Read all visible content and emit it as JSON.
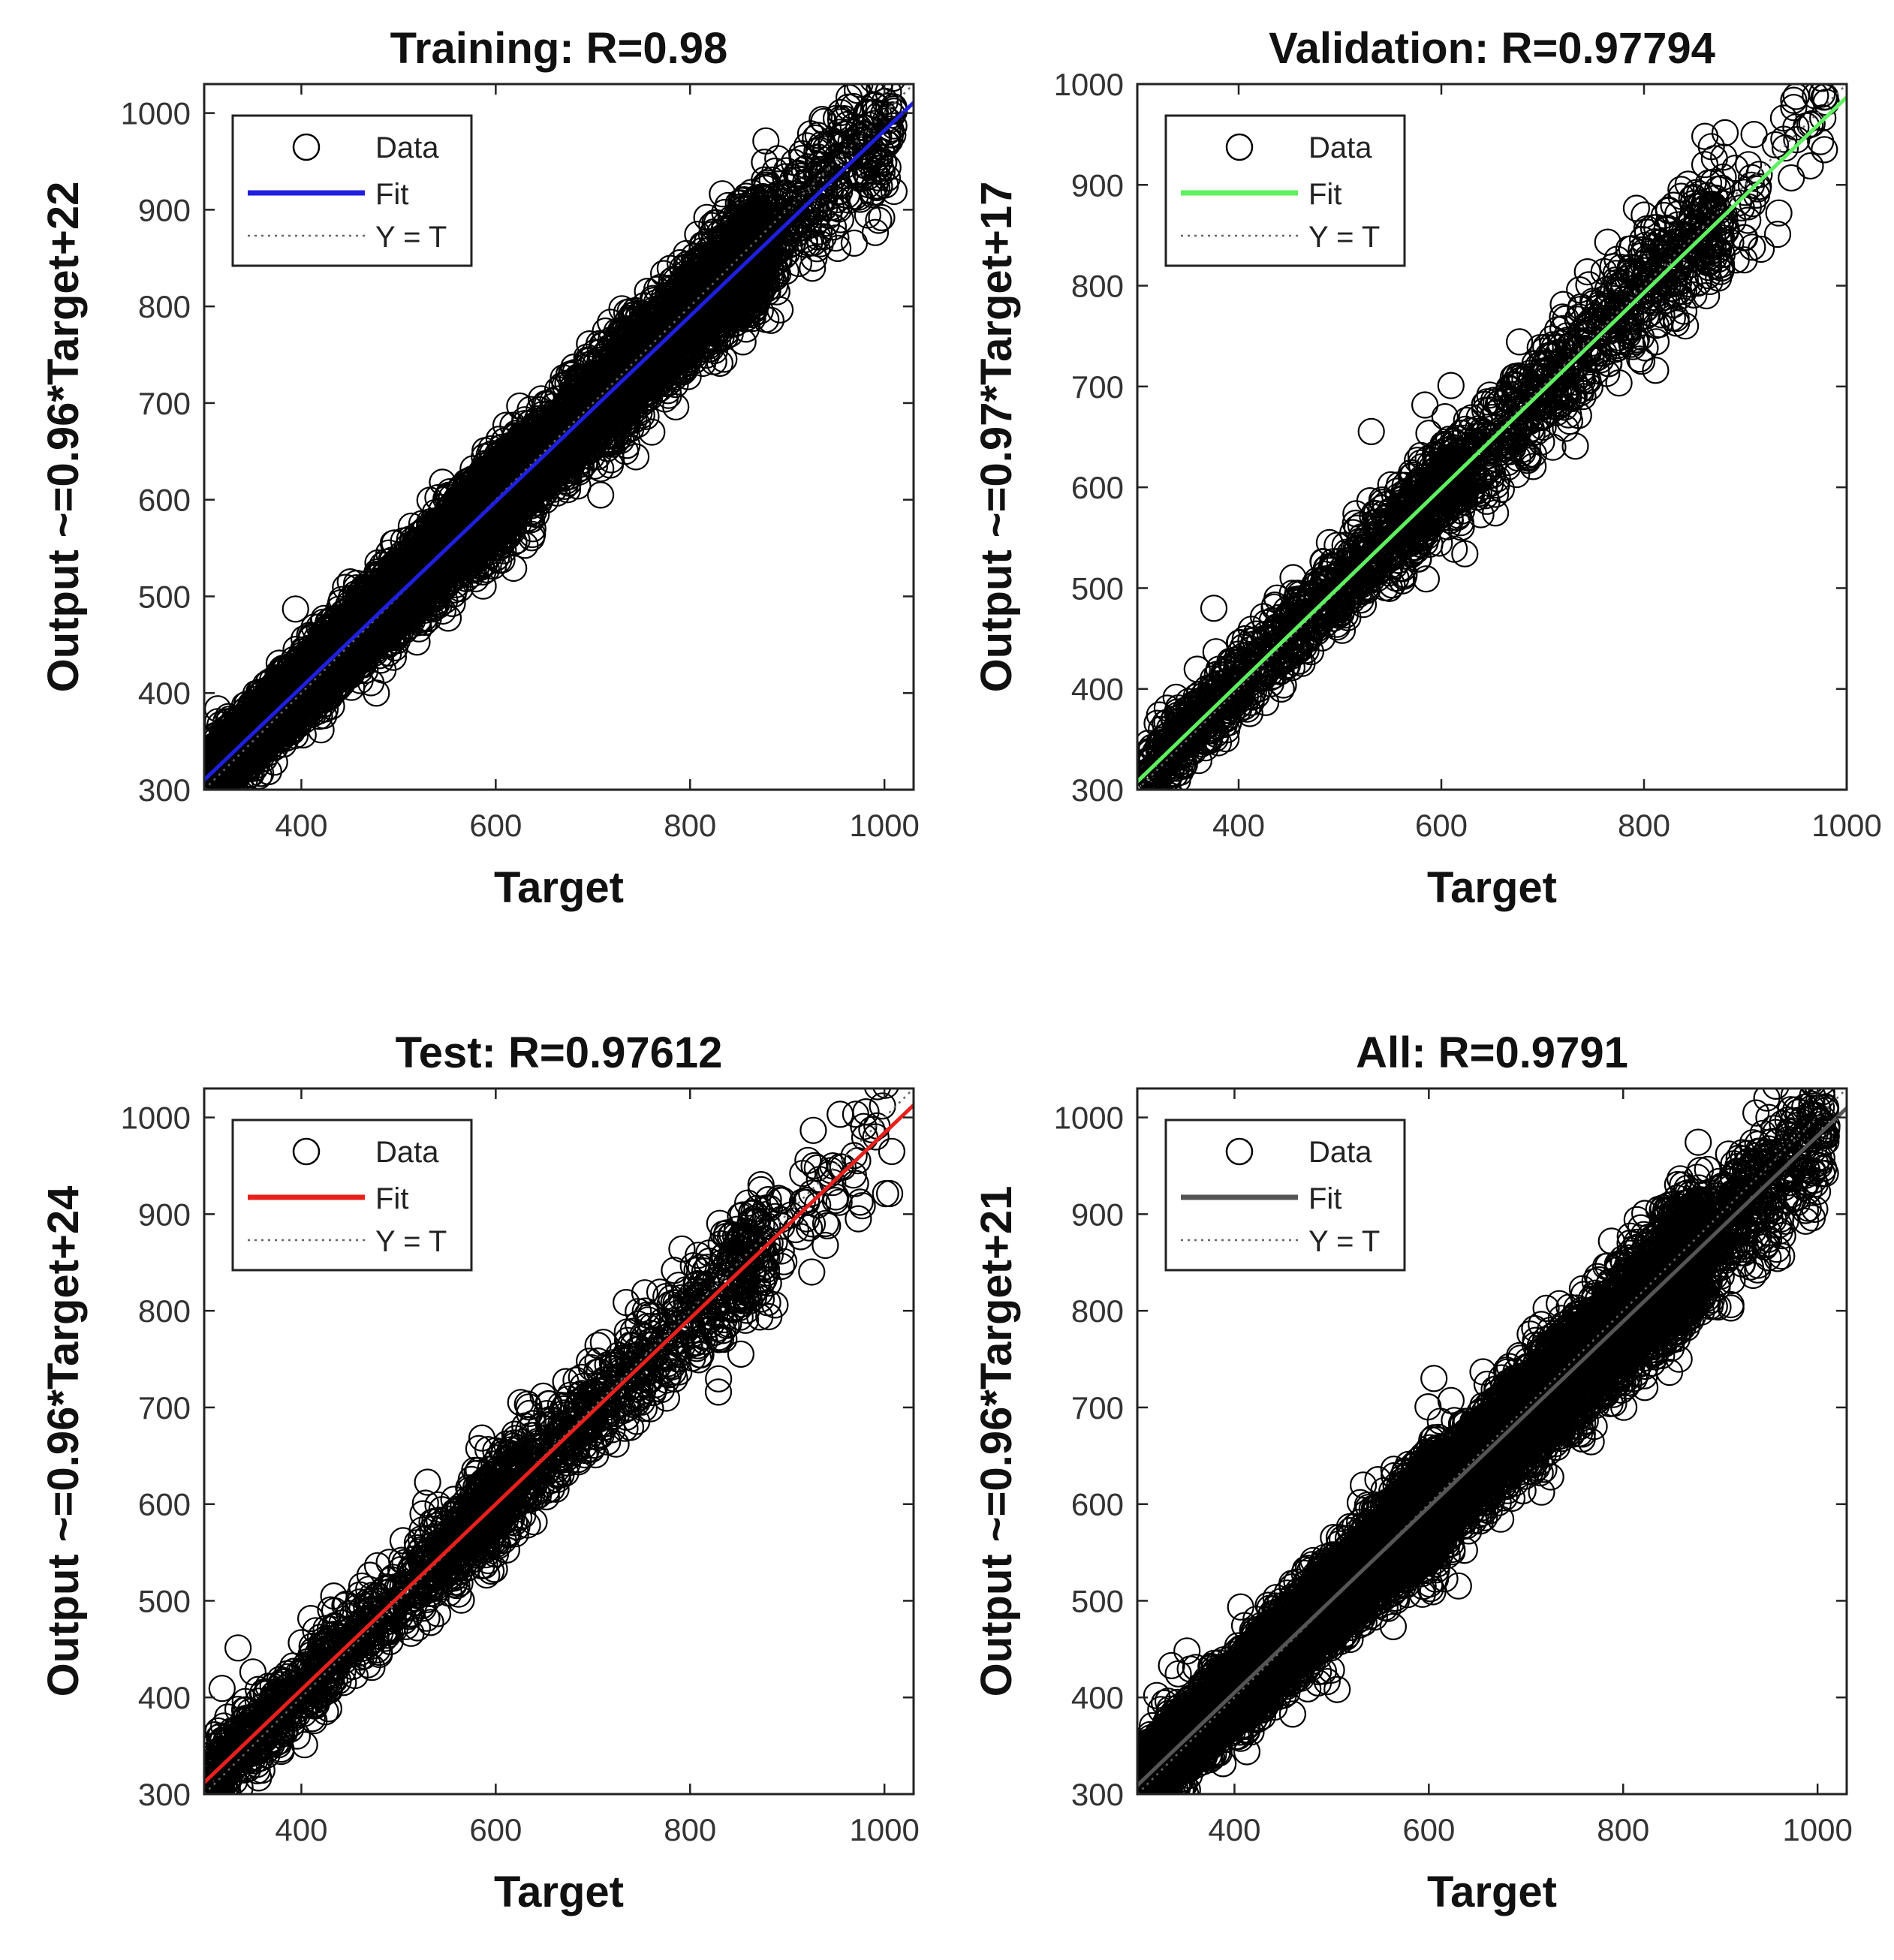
{
  "chart_data": [
    {
      "type": "scatter",
      "id": "training",
      "title": "Training: R=0.98",
      "xlabel": "Target",
      "ylabel": "Output ~= 0.96*Target + 22",
      "ylabel_display": "Output ~=0.96*Target+22",
      "xlim": [
        300,
        1030
      ],
      "ylim": [
        300,
        1030
      ],
      "xticks": [
        400,
        600,
        800,
        1000
      ],
      "yticks": [
        300,
        400,
        500,
        600,
        700,
        800,
        900,
        1000
      ],
      "fit": {
        "slope": 0.96,
        "intercept": 22,
        "color": "#1f1fe0"
      },
      "approx_points": 9000,
      "spread": 24,
      "legend": {
        "data": "Data",
        "fit": "Fit",
        "identity": "Y = T",
        "position": "top-left"
      }
    },
    {
      "type": "scatter",
      "id": "validation",
      "title": "Validation: R=0.97794",
      "xlabel": "Target",
      "ylabel": "Output ~= 0.97*Target + 17",
      "ylabel_display": "Output ~=0.97*Target+17",
      "xlim": [
        300,
        1000
      ],
      "ylim": [
        300,
        1000
      ],
      "xticks": [
        400,
        600,
        800,
        1000
      ],
      "yticks": [
        300,
        400,
        500,
        600,
        700,
        800,
        900,
        1000
      ],
      "fit": {
        "slope": 0.97,
        "intercept": 17,
        "color": "#5ef05e"
      },
      "approx_points": 1900,
      "spread": 26,
      "legend": {
        "data": "Data",
        "fit": "Fit",
        "identity": "Y = T",
        "position": "top-left"
      }
    },
    {
      "type": "scatter",
      "id": "test",
      "title": "Test: R=0.97612",
      "xlabel": "Target",
      "ylabel": "Output ~= 0.96*Target + 24",
      "ylabel_display": "Output ~=0.96*Target+24",
      "xlim": [
        300,
        1030
      ],
      "ylim": [
        300,
        1030
      ],
      "xticks": [
        400,
        600,
        800,
        1000
      ],
      "yticks": [
        300,
        400,
        500,
        600,
        700,
        800,
        900,
        1000
      ],
      "fit": {
        "slope": 0.96,
        "intercept": 24,
        "color": "#e8201c"
      },
      "approx_points": 1900,
      "spread": 27,
      "legend": {
        "data": "Data",
        "fit": "Fit",
        "identity": "Y = T",
        "position": "top-left"
      }
    },
    {
      "type": "scatter",
      "id": "all",
      "title": "All: R=0.9791",
      "xlabel": "Target",
      "ylabel": "Output ~= 0.96*Target + 21",
      "ylabel_display": "Output ~=0.96*Target+21",
      "xlim": [
        300,
        1030
      ],
      "ylim": [
        300,
        1030
      ],
      "xticks": [
        400,
        600,
        800,
        1000
      ],
      "yticks": [
        300,
        400,
        500,
        600,
        700,
        800,
        900,
        1000
      ],
      "fit": {
        "slope": 0.96,
        "intercept": 21,
        "color": "#555555"
      },
      "approx_points": 12800,
      "spread": 25,
      "legend": {
        "data": "Data",
        "fit": "Fit",
        "identity": "Y = T",
        "position": "top-left"
      }
    }
  ]
}
